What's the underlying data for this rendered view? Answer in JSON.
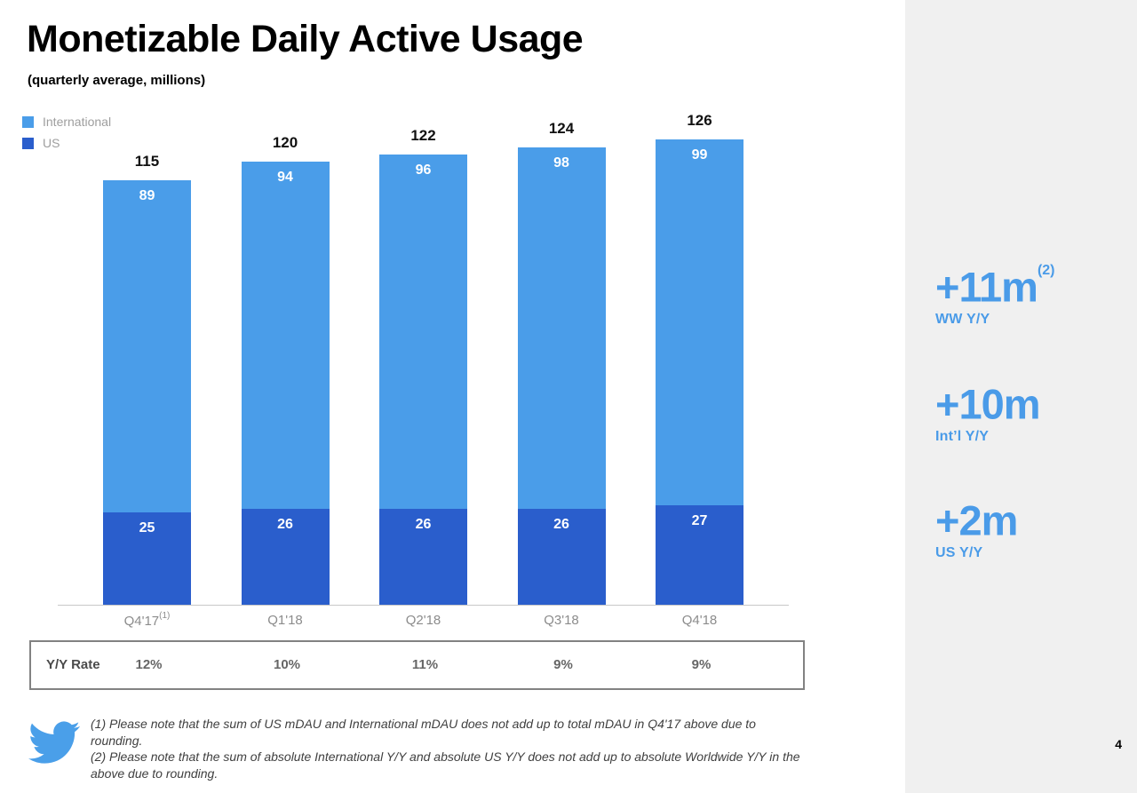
{
  "header": {
    "title": "Monetizable Daily Active Usage",
    "subtitle": "(quarterly average, millions)"
  },
  "chart_data": {
    "type": "bar",
    "stacked": true,
    "title": "Monetizable Daily Active Usage",
    "subtitle": "(quarterly average, millions)",
    "categories": [
      "Q4'17",
      "Q1'18",
      "Q2'18",
      "Q3'18",
      "Q4'18"
    ],
    "category_footnote_marks": [
      "(1)",
      "",
      "",
      "",
      ""
    ],
    "series": [
      {
        "name": "International",
        "color": "#4A9DE9",
        "values": [
          89,
          94,
          96,
          98,
          99
        ]
      },
      {
        "name": "US",
        "color": "#2A5ECC",
        "values": [
          25,
          26,
          26,
          26,
          27
        ]
      }
    ],
    "totals": [
      115,
      120,
      122,
      124,
      126
    ],
    "legend_position": "top-left",
    "grid": false,
    "yy_rate": {
      "label": "Y/Y Rate",
      "values": [
        "12%",
        "10%",
        "11%",
        "9%",
        "9%"
      ]
    }
  },
  "callouts": [
    {
      "value": "+11m",
      "footnote_mark": "(2)",
      "label": "WW Y/Y"
    },
    {
      "value": "+10m",
      "footnote_mark": "",
      "label": "Int’l Y/Y"
    },
    {
      "value": "+2m",
      "footnote_mark": "",
      "label": "US Y/Y"
    }
  ],
  "footnotes": [
    "(1) Please note that the sum of US mDAU and International mDAU does not add up to total mDAU in Q4'17 above due to rounding.",
    "(2) Please note that the sum of absolute International Y/Y and absolute US Y/Y does not add up to absolute Worldwide Y/Y in the above due to rounding."
  ],
  "footer": {
    "page_number": "4"
  },
  "colors": {
    "international_blue": "#4A9DE9",
    "us_blue": "#2A5ECC",
    "callout_blue": "#4A9BE8",
    "twitter_blue": "#4A9FE9",
    "panel_gray": "#F0F0F0"
  }
}
